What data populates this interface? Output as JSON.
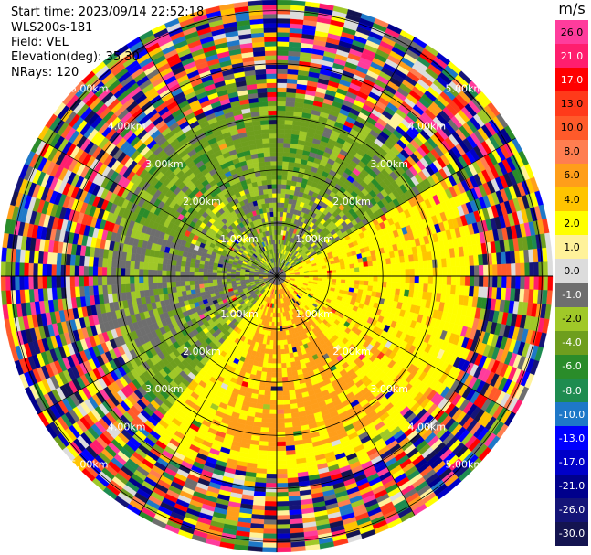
{
  "info": {
    "start_time": "Start time: 2023/09/14 22:52:18",
    "instrument": "WLS200s-181",
    "field": "Field: VEL",
    "elevation": "Elevation(deg): 35.30",
    "nrays": "NRays: 120"
  },
  "colorbar": {
    "unit": "m/s",
    "ticks": [
      "26.0",
      "21.0",
      "17.0",
      "13.0",
      "10.0",
      "8.0",
      "6.0",
      "4.0",
      "2.0",
      "1.0",
      "0.0",
      "-1.0",
      "-2.0",
      "-4.0",
      "-6.0",
      "-8.0",
      "-10.0",
      "-13.0",
      "-17.0",
      "-21.0",
      "-26.0",
      "-30.0"
    ],
    "colors": [
      "#ff3c9c",
      "#ff1e6e",
      "#ff0000",
      "#ff3a1a",
      "#ff5a2a",
      "#ff7e50",
      "#ff9e1a",
      "#ffc400",
      "#ffff00",
      "#fff29a",
      "#dcdcdc",
      "#6e6e6e",
      "#a0c828",
      "#6e9e1e",
      "#2a8c2a",
      "#1e8c50",
      "#1e78c8",
      "#0000ff",
      "#0000c8",
      "#00008c",
      "#141478",
      "#141450"
    ]
  },
  "chart_data": {
    "type": "ppi",
    "field": "VEL",
    "units": "m/s",
    "nrays": 120,
    "elevation_deg": 35.3,
    "range_rings_km": [
      1,
      2,
      3,
      4,
      5
    ],
    "ring_labels": [
      "1.00km",
      "2.00km",
      "3.00km",
      "4.00km",
      "5.00km"
    ],
    "max_range_km": 5.2,
    "value_range": [
      -30,
      30
    ],
    "pattern": {
      "near_field_sectors": [
        {
          "from_deg": 270,
          "to_deg": 45,
          "dominant_color": "#6e9e1e"
        },
        {
          "from_deg": 60,
          "to_deg": 220,
          "dominant_color": "#ffff00"
        },
        {
          "from_deg": 140,
          "to_deg": 200,
          "dominant_color": "#ff9e1a"
        },
        {
          "from_deg": 240,
          "to_deg": 290,
          "dominant_color": "#6e6e6e"
        }
      ],
      "outer_noise_from_km": 3.3
    }
  }
}
